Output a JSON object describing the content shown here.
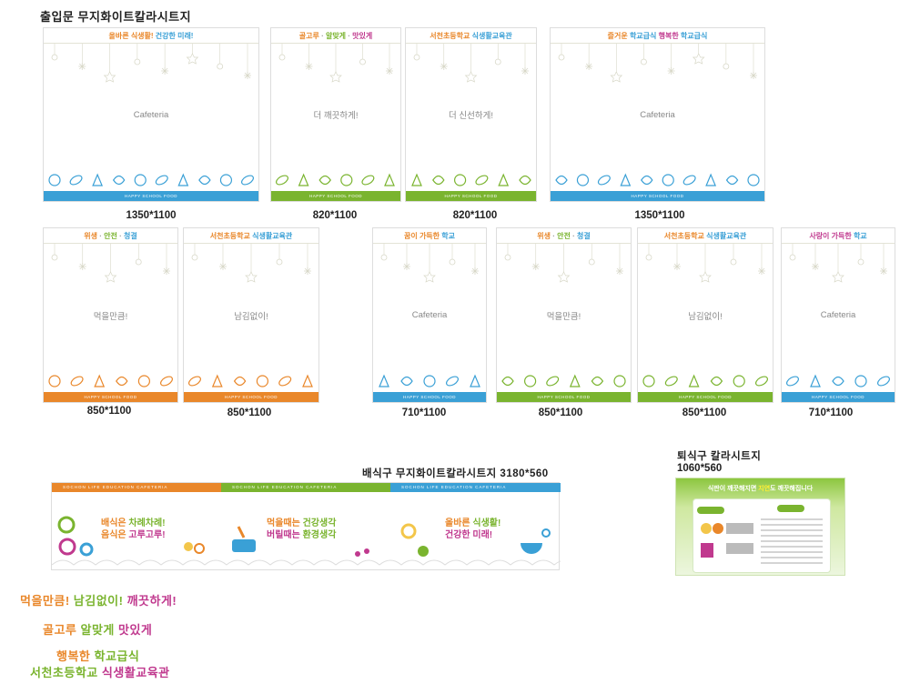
{
  "sheet_title": "출입문 무지화이트칼라시트지",
  "band_text": "HAPPY SCHOOL FOOD",
  "colors": {
    "orange": "#e9872a",
    "green": "#7ab42f",
    "blue": "#3aa0d6",
    "gray": "#999999",
    "purple": "#c0398e"
  },
  "panels": [
    {
      "head_parts": [
        {
          "t": "올바른 식생활!",
          "c": "o"
        },
        {
          "t": " 건강한 미래!",
          "c": "b"
        }
      ],
      "center": "Cafeteria",
      "band": "blue",
      "size": "1350*1100"
    },
    {
      "head_parts": [
        {
          "t": "골고루",
          "c": "o"
        },
        {
          "t": " · ",
          "c": "gr"
        },
        {
          "t": "알맞게",
          "c": "g"
        },
        {
          "t": " · ",
          "c": "gr"
        },
        {
          "t": "맛있게",
          "c": "p"
        }
      ],
      "center": "더 깨끗하게!",
      "band": "green",
      "size": "820*1100"
    },
    {
      "head_parts": [
        {
          "t": "서천초등학교",
          "c": "o"
        },
        {
          "t": " 식생활교육관",
          "c": "b"
        }
      ],
      "center": "더 신선하게!",
      "band": "green",
      "size": "820*1100"
    },
    {
      "head_parts": [
        {
          "t": "즐거운",
          "c": "o"
        },
        {
          "t": " 학교급식 ",
          "c": "b"
        },
        {
          "t": "행복한",
          "c": "p"
        },
        {
          "t": " 학교급식",
          "c": "b"
        }
      ],
      "center": "Cafeteria",
      "band": "blue",
      "size": "1350*1100"
    },
    {
      "head_parts": [
        {
          "t": "위생",
          "c": "o"
        },
        {
          "t": " · ",
          "c": "gr"
        },
        {
          "t": "안전",
          "c": "g"
        },
        {
          "t": " · ",
          "c": "gr"
        },
        {
          "t": "청결",
          "c": "b"
        }
      ],
      "center": "먹을만큼!",
      "band": "orange",
      "size": "850*1100"
    },
    {
      "head_parts": [
        {
          "t": "서천초등학교",
          "c": "o"
        },
        {
          "t": " 식생활교육관",
          "c": "b"
        }
      ],
      "center": "남김없이!",
      "band": "orange",
      "size": "850*1100"
    },
    {
      "head_parts": [
        {
          "t": "꿈이 가득한",
          "c": "o"
        },
        {
          "t": " 학교",
          "c": "b"
        }
      ],
      "center": "Cafeteria",
      "band": "blue",
      "size": "710*1100"
    },
    {
      "head_parts": [
        {
          "t": "위생",
          "c": "o"
        },
        {
          "t": " · ",
          "c": "gr"
        },
        {
          "t": "안전",
          "c": "g"
        },
        {
          "t": " · ",
          "c": "gr"
        },
        {
          "t": "청결",
          "c": "b"
        }
      ],
      "center": "먹을만큼!",
      "band": "green",
      "size": "850*1100"
    },
    {
      "head_parts": [
        {
          "t": "서천초등학교",
          "c": "o"
        },
        {
          "t": " 식생활교육관",
          "c": "b"
        }
      ],
      "center": "남김없이!",
      "band": "green",
      "size": "850*1100"
    },
    {
      "head_parts": [
        {
          "t": "사랑이 가득한",
          "c": "p"
        },
        {
          "t": " 학교",
          "c": "b"
        }
      ],
      "center": "Cafeteria",
      "band": "blue",
      "size": "710*1100"
    }
  ],
  "serving": {
    "title": "배식구 무지화이트칼라시트지 3180*560",
    "strip_text": "SOCHON LIFE EDUCATION CAFETERIA",
    "groups": [
      {
        "l1": [
          {
            "t": "배식은",
            "c": "o"
          },
          {
            "t": " 차례차례!",
            "c": "g"
          }
        ],
        "l2": [
          {
            "t": "음식은",
            "c": "o"
          },
          {
            "t": " 고루고루!",
            "c": "p"
          }
        ]
      },
      {
        "l1": [
          {
            "t": "먹을때는",
            "c": "o"
          },
          {
            "t": " 건강생각",
            "c": "g"
          }
        ],
        "l2": [
          {
            "t": "버릴때는",
            "c": "p"
          },
          {
            "t": " 환경생각",
            "c": "g"
          }
        ]
      },
      {
        "l1": [
          {
            "t": "올바른",
            "c": "o"
          },
          {
            "t": " 식생활!",
            "c": "g"
          }
        ],
        "l2": [
          {
            "t": "건강한",
            "c": "p"
          },
          {
            "t": " 미래!",
            "c": "p"
          }
        ]
      }
    ]
  },
  "return": {
    "title": "퇴식구 칼라시트지",
    "size": "1060*560",
    "banner_pre": "식판이 깨끗해지면 ",
    "banner_hl": "지연",
    "banner_post": "도 깨끗해집니다"
  },
  "slogans": [
    {
      "parts": [
        {
          "t": "먹을만큼!",
          "c": "o"
        },
        {
          "t": " 남김없이!",
          "c": "g"
        },
        {
          "t": " 깨끗하게!",
          "c": "p"
        }
      ]
    },
    {
      "parts": [
        {
          "t": "골고루",
          "c": "o"
        },
        {
          "t": " 알맞게",
          "c": "g"
        },
        {
          "t": " 맛있게",
          "c": "p"
        }
      ]
    },
    {
      "parts": [
        {
          "t": "행복한",
          "c": "o"
        },
        {
          "t": " 학교급식",
          "c": "g"
        }
      ]
    },
    {
      "parts": [
        {
          "t": "서천초등학교",
          "c": "g"
        },
        {
          "t": " 식생활교육관",
          "c": "p"
        }
      ]
    }
  ]
}
